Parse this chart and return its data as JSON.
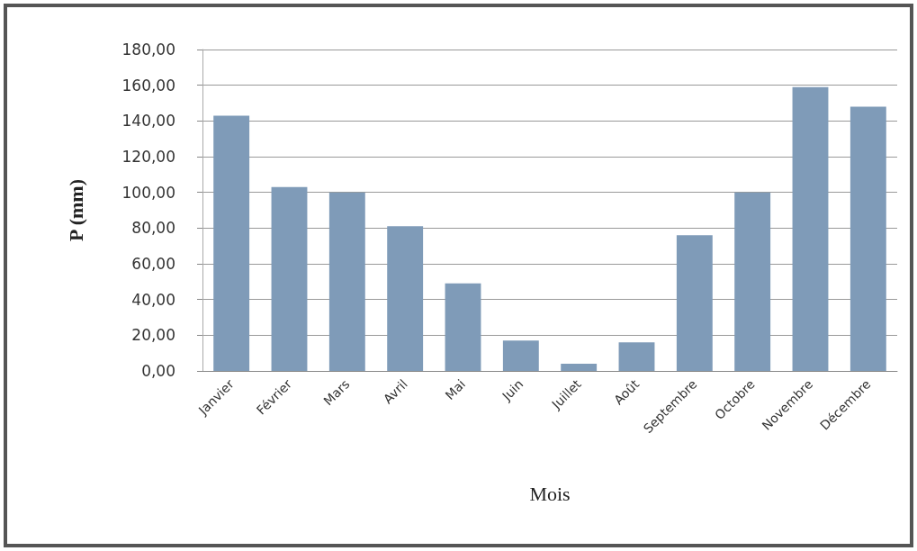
{
  "chart_data": {
    "type": "bar",
    "xlabel": "Mois",
    "ylabel": "P (mm)",
    "categories": [
      "Janvier",
      "Février",
      "Mars",
      "Avril",
      "Mai",
      "Juin",
      "Juillet",
      "Août",
      "Septembre",
      "Octobre",
      "Novembre",
      "Décembre"
    ],
    "values": [
      143,
      103,
      100,
      81,
      49,
      17,
      4,
      16,
      76,
      100,
      159,
      148
    ],
    "color": "#7f9bb8",
    "ylim": [
      0,
      180
    ],
    "yticks": [
      {
        "value": 0,
        "label": "0,00"
      },
      {
        "value": 20,
        "label": "20,00"
      },
      {
        "value": 40,
        "label": "40,00"
      },
      {
        "value": 60,
        "label": "60,00"
      },
      {
        "value": 80,
        "label": "80,00"
      },
      {
        "value": 100,
        "label": "100,00"
      },
      {
        "value": 120,
        "label": "120,00"
      },
      {
        "value": 140,
        "label": "140,00"
      },
      {
        "value": 160,
        "label": "160,00"
      },
      {
        "value": 180,
        "label": "180,00"
      }
    ],
    "grid": "y"
  }
}
